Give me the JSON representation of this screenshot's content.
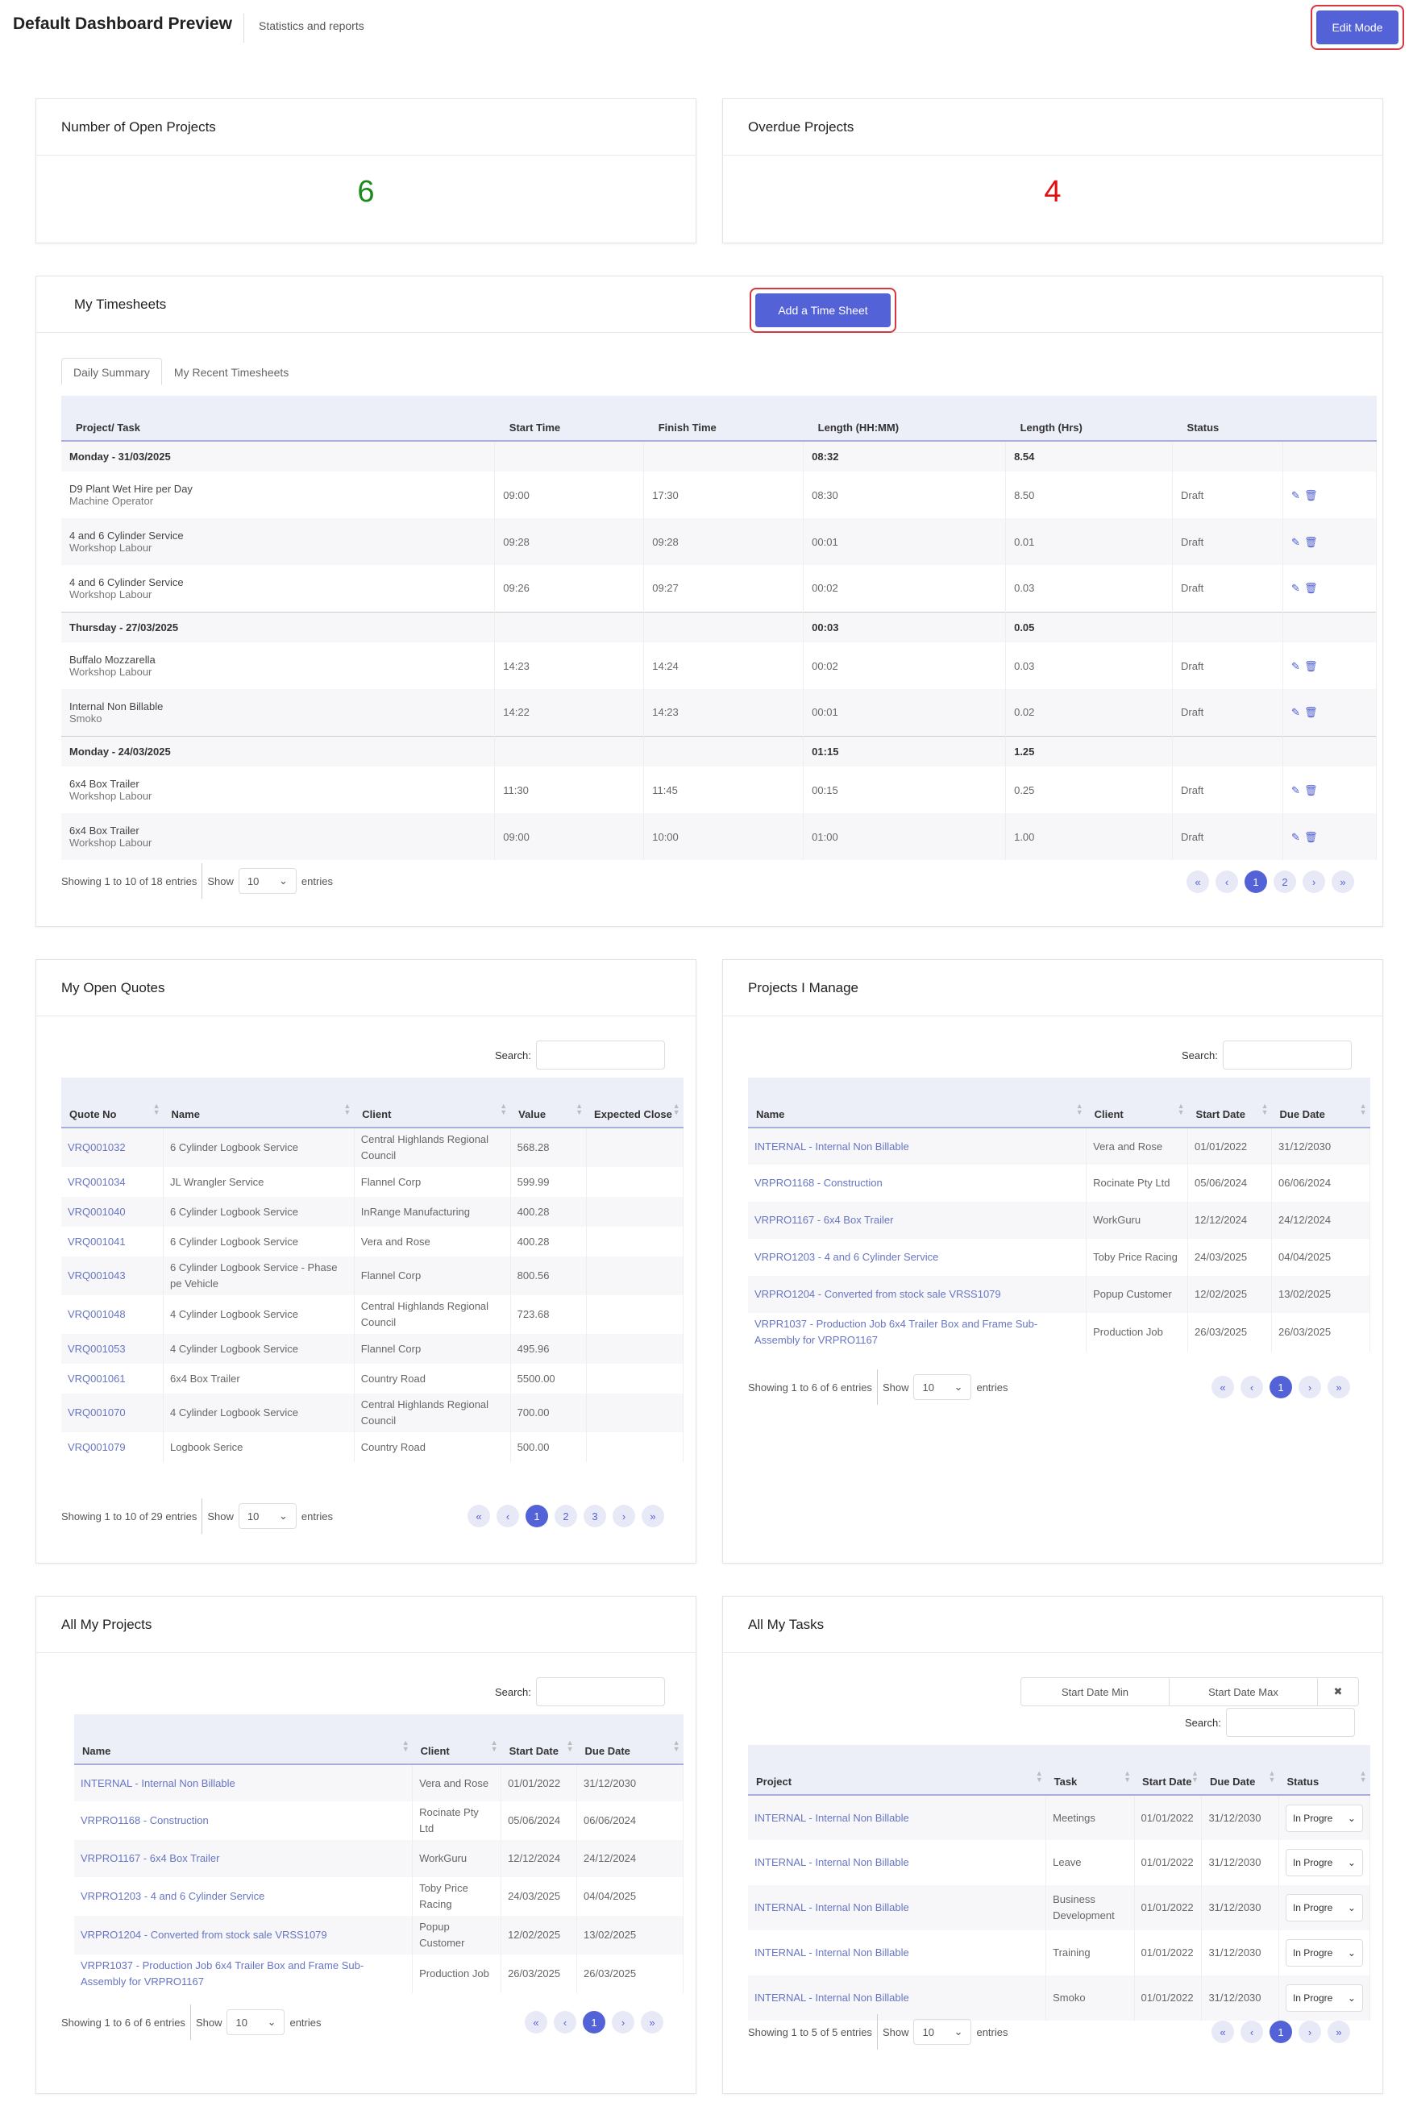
{
  "header": {
    "title": "Default Dashboard Preview",
    "subtitle": "Statistics and reports",
    "edit_mode": "Edit Mode"
  },
  "open_projects": {
    "title": "Number of Open Projects",
    "value": "6",
    "color": "#1a8a1a"
  },
  "overdue_projects": {
    "title": "Overdue Projects",
    "value": "4",
    "color": "#e01010"
  },
  "timesheets": {
    "title": "My Timesheets",
    "add_label": "Add a Time Sheet",
    "tabs": [
      "Daily Summary",
      "My Recent Timesheets"
    ],
    "columns": [
      "Project/ Task",
      "Start Time",
      "Finish Time",
      "Length (HH:MM)",
      "Length (Hrs)",
      "Status"
    ],
    "groups": [
      {
        "label": "Monday - 31/03/2025",
        "hhmm": "08:32",
        "hrs": "8.54",
        "rows": [
          {
            "project": "D9 Plant Wet Hire per Day",
            "task": "Machine Operator",
            "start": "09:00",
            "finish": "17:30",
            "hhmm": "08:30",
            "hrs": "8.50",
            "status": "Draft"
          },
          {
            "project": "4 and 6 Cylinder Service",
            "task": "Workshop Labour",
            "start": "09:28",
            "finish": "09:28",
            "hhmm": "00:01",
            "hrs": "0.01",
            "status": "Draft"
          },
          {
            "project": "4 and 6 Cylinder Service",
            "task": "Workshop Labour",
            "start": "09:26",
            "finish": "09:27",
            "hhmm": "00:02",
            "hrs": "0.03",
            "status": "Draft"
          }
        ]
      },
      {
        "label": "Thursday - 27/03/2025",
        "hhmm": "00:03",
        "hrs": "0.05",
        "rows": [
          {
            "project": "Buffalo Mozzarella",
            "task": "Workshop Labour",
            "start": "14:23",
            "finish": "14:24",
            "hhmm": "00:02",
            "hrs": "0.03",
            "status": "Draft"
          },
          {
            "project": "Internal Non Billable",
            "task": "Smoko",
            "start": "14:22",
            "finish": "14:23",
            "hhmm": "00:01",
            "hrs": "0.02",
            "status": "Draft"
          }
        ]
      },
      {
        "label": "Monday - 24/03/2025",
        "hhmm": "01:15",
        "hrs": "1.25",
        "rows": [
          {
            "project": "6x4 Box Trailer",
            "task": "Workshop Labour",
            "start": "11:30",
            "finish": "11:45",
            "hhmm": "00:15",
            "hrs": "0.25",
            "status": "Draft"
          },
          {
            "project": "6x4 Box Trailer",
            "task": "Workshop Labour",
            "start": "09:00",
            "finish": "10:00",
            "hhmm": "01:00",
            "hrs": "1.00",
            "status": "Draft"
          }
        ]
      }
    ],
    "info": "Showing 1 to 10 of 18 entries",
    "show": "Show",
    "entries": "entries",
    "page_size": "10",
    "pages": [
      "«",
      "‹",
      "1",
      "2",
      "›",
      "»"
    ]
  },
  "quotes": {
    "title": "My Open Quotes",
    "search": "Search:",
    "columns": [
      "Quote No",
      "Name",
      "Client",
      "Value",
      "Expected Close"
    ],
    "rows": [
      [
        "VRQ001032",
        "6 Cylinder Logbook Service",
        "Central Highlands Regional Council",
        "568.28",
        ""
      ],
      [
        "VRQ001034",
        "JL Wrangler Service",
        "Flannel Corp",
        "599.99",
        ""
      ],
      [
        "VRQ001040",
        "6 Cylinder Logbook Service",
        "InRange Manufacturing",
        "400.28",
        ""
      ],
      [
        "VRQ001041",
        "6 Cylinder Logbook Service",
        "Vera and Rose",
        "400.28",
        ""
      ],
      [
        "VRQ001043",
        "6 Cylinder Logbook Service - Phase pe Vehicle",
        "Flannel Corp",
        "800.56",
        ""
      ],
      [
        "VRQ001048",
        "4 Cylinder Logbook Service",
        "Central Highlands Regional Council",
        "723.68",
        ""
      ],
      [
        "VRQ001053",
        "4 Cylinder Logbook Service",
        "Flannel Corp",
        "495.96",
        ""
      ],
      [
        "VRQ001061",
        "6x4 Box Trailer",
        "Country Road",
        "5500.00",
        ""
      ],
      [
        "VRQ001070",
        "4 Cylinder Logbook Service",
        "Central Highlands Regional Council",
        "700.00",
        ""
      ],
      [
        "VRQ001079",
        "Logbook Serice",
        "Country Road",
        "500.00",
        ""
      ]
    ],
    "info": "Showing 1 to 10 of 29 entries",
    "show": "Show",
    "entries": "entries",
    "page_size": "10",
    "pages": [
      "«",
      "‹",
      "1",
      "2",
      "3",
      "›",
      "»"
    ]
  },
  "managed": {
    "title": "Projects I Manage",
    "search": "Search:",
    "columns": [
      "Name",
      "Client",
      "Start Date",
      "Due Date"
    ],
    "rows": [
      [
        "INTERNAL - Internal Non Billable",
        "Vera and Rose",
        "01/01/2022",
        "31/12/2030"
      ],
      [
        "VRPRO1168 - Construction",
        "Rocinate Pty Ltd",
        "05/06/2024",
        "06/06/2024"
      ],
      [
        "VRPRO1167 - 6x4 Box Trailer",
        "WorkGuru",
        "12/12/2024",
        "24/12/2024"
      ],
      [
        "VRPRO1203 - 4 and 6 Cylinder Service",
        "Toby Price Racing",
        "24/03/2025",
        "04/04/2025"
      ],
      [
        "VRPRO1204 - Converted from stock sale VRSS1079",
        "Popup Customer",
        "12/02/2025",
        "13/02/2025"
      ],
      [
        "VRPR1037 - Production Job 6x4 Trailer Box and Frame Sub-Assembly for VRPRO1167",
        "Production Job",
        "26/03/2025",
        "26/03/2025"
      ]
    ],
    "info": "Showing 1 to 6 of 6 entries",
    "show": "Show",
    "entries": "entries",
    "page_size": "10",
    "pages": [
      "«",
      "‹",
      "1",
      "›",
      "»"
    ]
  },
  "all_projects": {
    "title": "All My Projects",
    "search": "Search:",
    "columns": [
      "Name",
      "Client",
      "Start Date",
      "Due Date"
    ],
    "rows": [
      [
        "INTERNAL - Internal Non Billable",
        "Vera and Rose",
        "01/01/2022",
        "31/12/2030"
      ],
      [
        "VRPRO1168 - Construction",
        "Rocinate Pty Ltd",
        "05/06/2024",
        "06/06/2024"
      ],
      [
        "VRPRO1167 - 6x4 Box Trailer",
        "WorkGuru",
        "12/12/2024",
        "24/12/2024"
      ],
      [
        "VRPRO1203 - 4 and 6 Cylinder Service",
        "Toby Price Racing",
        "24/03/2025",
        "04/04/2025"
      ],
      [
        "VRPRO1204 - Converted from stock sale VRSS1079",
        "Popup Customer",
        "12/02/2025",
        "13/02/2025"
      ],
      [
        "VRPR1037 - Production Job 6x4 Trailer Box and Frame Sub-Assembly for VRPRO1167",
        "Production Job",
        "26/03/2025",
        "26/03/2025"
      ]
    ],
    "info": "Showing 1 to 6 of 6 entries",
    "show": "Show",
    "entries": "entries",
    "page_size": "10",
    "pages": [
      "«",
      "‹",
      "1",
      "›",
      "»"
    ]
  },
  "tasks": {
    "title": "All My Tasks",
    "search": "Search:",
    "start_min": "Start Date Min",
    "start_max": "Start Date Max",
    "clear": "✖",
    "columns": [
      "Project",
      "Task",
      "Start Date",
      "Due Date",
      "Status"
    ],
    "rows": [
      [
        "INTERNAL - Internal Non Billable",
        "Meetings",
        "01/01/2022",
        "31/12/2030",
        "In Progre"
      ],
      [
        "INTERNAL - Internal Non Billable",
        "Leave",
        "01/01/2022",
        "31/12/2030",
        "In Progre"
      ],
      [
        "INTERNAL - Internal Non Billable",
        "Business Development",
        "01/01/2022",
        "31/12/2030",
        "In Progre"
      ],
      [
        "INTERNAL - Internal Non Billable",
        "Training",
        "01/01/2022",
        "31/12/2030",
        "In Progre"
      ],
      [
        "INTERNAL - Internal Non Billable",
        "Smoko",
        "01/01/2022",
        "31/12/2030",
        "In Progre"
      ]
    ],
    "info": "Showing 1 to 5 of 5 entries",
    "show": "Show",
    "entries": "entries",
    "page_size": "10",
    "pages": [
      "«",
      "‹",
      "1",
      "›",
      "»"
    ]
  }
}
